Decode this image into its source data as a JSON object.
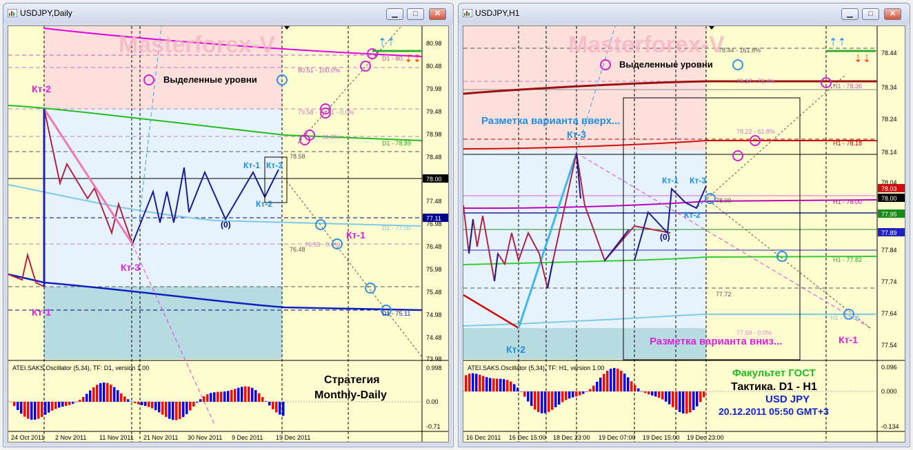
{
  "windows": [
    {
      "title": "USDJPY,Daily",
      "watermark": "Masterforex-V",
      "selected_levels": "Выделенные уровни",
      "strategy_label_1": "Стратегия",
      "strategy_label_2": "Monthly-Daily",
      "oscillator": "ATEI.SAKS.Oscillator (5,34), TF: D1, version 1.00",
      "price_axis": [
        "80.98",
        "80.48",
        "79.98",
        "79.48",
        "78.98",
        "78.48",
        "77.98",
        "77.48",
        "76.98",
        "76.48",
        "75.98",
        "75.48",
        "74.98",
        "74.48",
        "73.98"
      ],
      "current_price": "78.00",
      "price_tag_2": "77.11",
      "osc_axis": [
        "0.998",
        "0.00",
        "-0.71"
      ],
      "time_axis": [
        "24 Oct 2011",
        "2 Nov 2011",
        "11 Nov 2011",
        "21 Nov 2011",
        "30 Nov 2011",
        "9 Dec 2011",
        "19 Dec 2011"
      ],
      "wave_labels": {
        "kt2": "Кт-2",
        "kt3": "Кт-3",
        "kt1": "Кт-1",
        "k1": "Кт-1",
        "k3": "Кт-3",
        "k2": "Кт-2",
        "kt1b": "Кт-1",
        "zero": "(0)"
      },
      "level_labels": {
        "d1_top": "D1 - 80.",
        "fib100": "80.51 - 100.0%",
        "fib0": "79.58 - 79.51 - 0.0%",
        "fib61": "61.8%",
        "d1_7889": "D1 - 78.89",
        "v7858": "78.58",
        "d1_77": "D1 - 77.00",
        "v7648": "76.48",
        "fib_low": "76.55 - 0.0%",
        "d1_7511": "D1 - 75.11"
      }
    },
    {
      "title": "USDJPY,H1",
      "watermark": "Masterforex-V",
      "selected_levels": "Выделенные уровни",
      "variant_up": "Разметка варианта вверх...",
      "variant_down": "Разметка варианта вниз...",
      "faculty": "Факультет ГОСТ",
      "tactic": "Тактика. D1 - H1",
      "pair": "USD JPY",
      "datetime": "20.12.2011 05:50 GMT+3",
      "oscillator": "ATEI.SAKS.Oscillator (5,34), TF: H1, version 1.00",
      "price_axis": [
        "78.44",
        "78.34",
        "78.24",
        "78.14",
        "78.04",
        "77.84",
        "77.74",
        "77.64",
        "77.54"
      ],
      "price_tags": [
        "78.03",
        "78.00",
        "77.95",
        "77.89"
      ],
      "osc_axis": [
        "0.096",
        "0.000",
        "-0.134"
      ],
      "time_axis": [
        "16 Dec 2011",
        "16 Dec 15:00",
        "18 Dec 23:00",
        "19 Dec 07:00",
        "19 Dec 15:00",
        "19 Dec 23:00"
      ],
      "wave_labels": {
        "kt3": "Кт-3",
        "kt2": "Кт-2",
        "k1": "Кт-1",
        "k3": "Кт-3",
        "k2": "Кт-2",
        "zero": "(0)",
        "kt1": "Кт-1"
      },
      "level_labels": {
        "top": "78.44 - 161.8%",
        "h1_7836": "H1 - 78.36",
        "v7837": "78.37 - 78.4%",
        "fib618": "78.22 - 61.8%",
        "h1_7818": "H1 - 78.18",
        "v7800": "78.00",
        "h1_7800": "H1 - 78.00",
        "h1_7782": "H1 - 77.82",
        "v7772": "77.72",
        "h1_7764": "H1 - 77.64",
        "fib0": "77.59 - 0.0%"
      }
    }
  ],
  "colors": {
    "chart_bg": "#fdfdd0",
    "pink_zone": "#fde0dc",
    "blue_zone": "#e6f2fc",
    "teal_zone": "#b6dce1",
    "up_bar": "#0000ff",
    "down_bar": "#ff0000",
    "wave_up": "#00008b",
    "wave_down": "#b22244",
    "magenta": "#e020e0",
    "cyan_text": "#1e8ee0"
  }
}
